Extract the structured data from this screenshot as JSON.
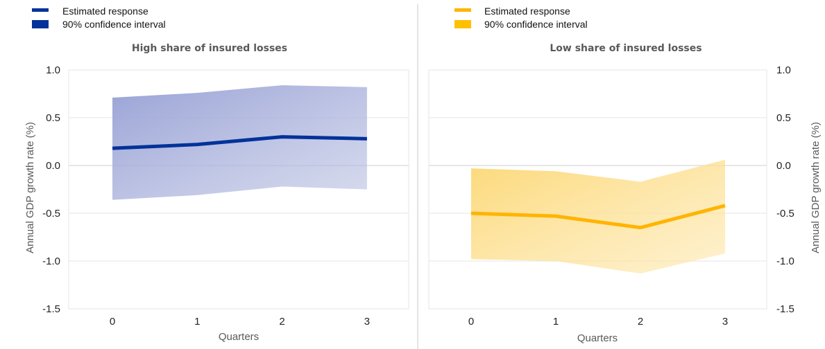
{
  "chart_data": [
    {
      "type": "line",
      "title": "High share of insured losses",
      "xlabel": "Quarters",
      "ylabel": "Annual GDP growth rate (%)",
      "x": [
        0,
        1,
        2,
        3
      ],
      "ylim": [
        -1.5,
        1.0
      ],
      "yticks": [
        1.0,
        0.5,
        0.0,
        -0.5,
        -1.0,
        -1.5
      ],
      "ytick_labels": [
        "1.0",
        "0.5",
        "0.0",
        "-0.5",
        "-1.0",
        "-1.5"
      ],
      "xtick_labels": [
        "0",
        "1",
        "2",
        "3"
      ],
      "y_axis_side": "left",
      "grid": true,
      "series": [
        {
          "name": "Estimated response",
          "values": [
            0.18,
            0.22,
            0.3,
            0.28
          ],
          "color": "#003299"
        },
        {
          "name": "90% confidence interval",
          "lower": [
            -0.36,
            -0.31,
            -0.22,
            -0.25
          ],
          "upper": [
            0.71,
            0.76,
            0.84,
            0.82
          ],
          "color": "#003299",
          "fill_light": "#b6bde0",
          "fill_dark": "#9aa3d6"
        }
      ],
      "legend": {
        "position": "top-left",
        "items": [
          "Estimated response",
          "90% confidence interval"
        ]
      }
    },
    {
      "type": "line",
      "title": "Low share of insured losses",
      "xlabel": "Quarters",
      "ylabel": "Annual GDP growth rate (%)",
      "x": [
        0,
        1,
        2,
        3
      ],
      "ylim": [
        -1.5,
        1.0
      ],
      "yticks": [
        1.0,
        0.5,
        0.0,
        -0.5,
        -1.0,
        -1.5
      ],
      "ytick_labels": [
        "1.0",
        "0.5",
        "0.0",
        "-0.5",
        "-1.0",
        "-1.5"
      ],
      "xtick_labels": [
        "0",
        "1",
        "2",
        "3"
      ],
      "y_axis_side": "right",
      "grid": true,
      "series": [
        {
          "name": "Estimated response",
          "values": [
            -0.5,
            -0.53,
            -0.65,
            -0.42
          ],
          "color": "#ffb400"
        },
        {
          "name": "90% confidence interval",
          "lower": [
            -0.98,
            -1.0,
            -1.13,
            -0.92
          ],
          "upper": [
            -0.03,
            -0.06,
            -0.17,
            0.06
          ],
          "color": "#ffc000",
          "fill_light": "#fde6a8",
          "fill_dark": "#fcd97a"
        }
      ],
      "legend": {
        "position": "top-left",
        "items": [
          "Estimated response",
          "90% confidence interval"
        ]
      }
    }
  ]
}
